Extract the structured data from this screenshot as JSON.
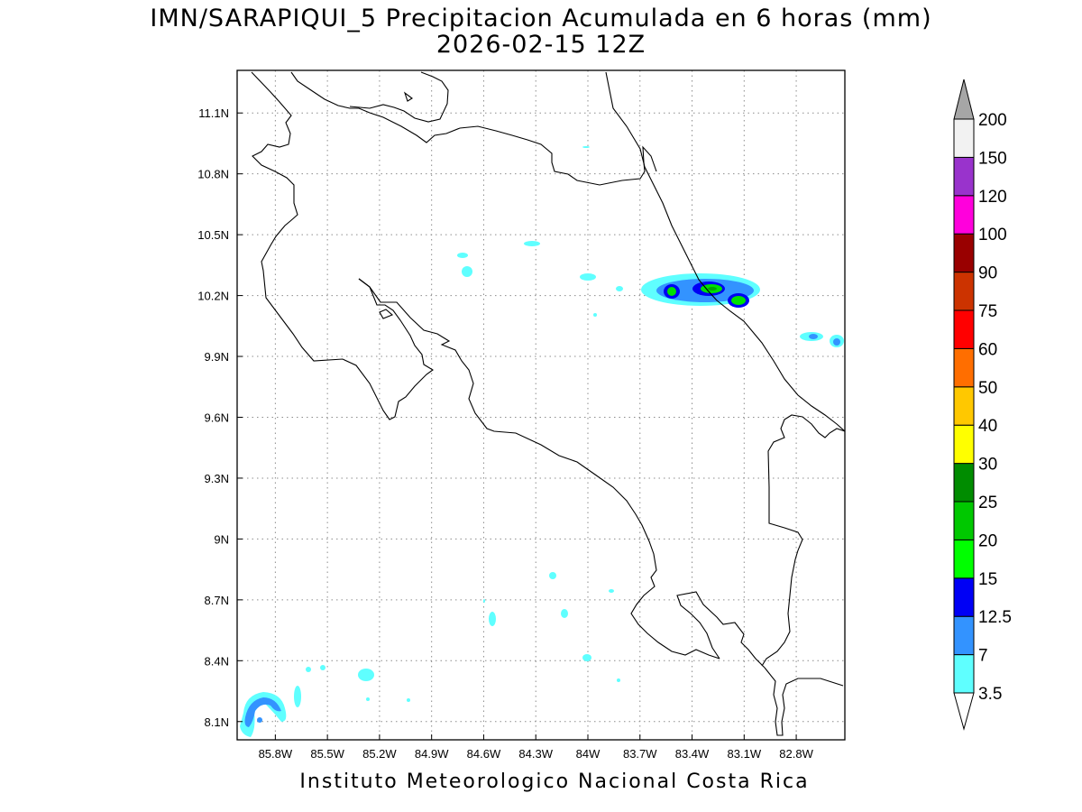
{
  "title": {
    "line1": "IMN/SARAPIQUI_5 Precipitacion Acumulada en 6 horas (mm)",
    "line2": "2026-02-15 12Z"
  },
  "footer": {
    "credit": "Instituto Meteorologico Nacional Costa Rica"
  },
  "map": {
    "lon_range": [
      -86.02,
      -82.52
    ],
    "lat_range": [
      8.01,
      11.31
    ],
    "lon_ticks": [
      {
        "value": -85.8,
        "label": "85.8W"
      },
      {
        "value": -85.5,
        "label": "85.5W"
      },
      {
        "value": -85.2,
        "label": "85.2W"
      },
      {
        "value": -84.9,
        "label": "84.9W"
      },
      {
        "value": -84.6,
        "label": "84.6W"
      },
      {
        "value": -84.3,
        "label": "84.3W"
      },
      {
        "value": -84.0,
        "label": "84W"
      },
      {
        "value": -83.7,
        "label": "83.7W"
      },
      {
        "value": -83.4,
        "label": "83.4W"
      },
      {
        "value": -83.1,
        "label": "83.1W"
      },
      {
        "value": -82.8,
        "label": "82.8W"
      }
    ],
    "lat_ticks": [
      {
        "value": 8.1,
        "label": "8.1N"
      },
      {
        "value": 8.4,
        "label": "8.4N"
      },
      {
        "value": 8.7,
        "label": "8.7N"
      },
      {
        "value": 9.0,
        "label": "9N"
      },
      {
        "value": 9.3,
        "label": "9.3N"
      },
      {
        "value": 9.6,
        "label": "9.6N"
      },
      {
        "value": 9.9,
        "label": "9.9N"
      },
      {
        "value": 10.2,
        "label": "10.2N"
      },
      {
        "value": 10.5,
        "label": "10.5N"
      },
      {
        "value": 10.8,
        "label": "10.8N"
      },
      {
        "value": 11.1,
        "label": "11.1N"
      }
    ],
    "grid": true,
    "precip_colors": {
      "light_cyan": "#5fffff",
      "light_blue": "#3393ff",
      "blue": "#0000f5",
      "green": "#00e100",
      "dark_green": "#00a800"
    }
  },
  "colorbar": {
    "labels": [
      "3.5",
      "7",
      "12.5",
      "15",
      "20",
      "25",
      "30",
      "40",
      "50",
      "60",
      "75",
      "90",
      "100",
      "120",
      "150",
      "200"
    ],
    "colors": [
      "#5fffff",
      "#3393ff",
      "#0000f5",
      "#00ff00",
      "#00c800",
      "#008c00",
      "#ffff00",
      "#ffc800",
      "#ff6e00",
      "#ff0000",
      "#cc3300",
      "#990000",
      "#ff00dc",
      "#9933cc",
      "#f2f2f2",
      "#a6a6a6"
    ],
    "upper_arrow_color": "#a6a6a6",
    "lower_arrow_color": "#ffffff"
  }
}
